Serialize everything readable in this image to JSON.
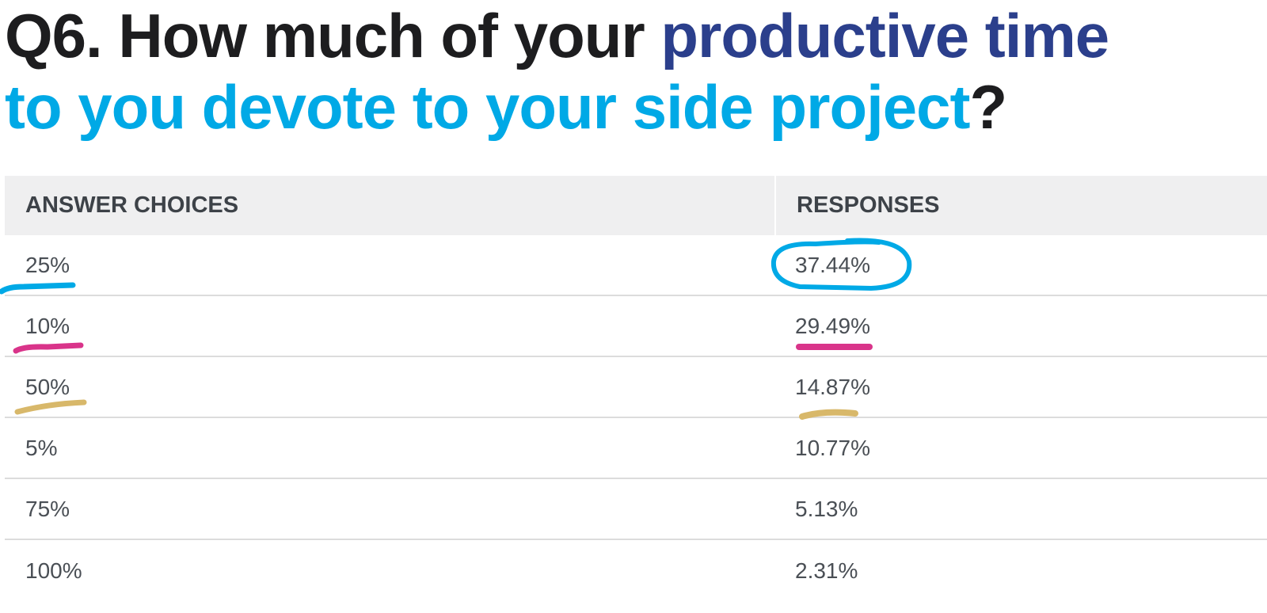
{
  "title": {
    "line1_black": "Q6. How much of your ",
    "line1_blue": "productive time",
    "line2_cyan": "to you devote to your side project",
    "line2_black": "?"
  },
  "colors": {
    "dark_blue": "#2b3f8c",
    "cyan": "#00a9e6",
    "pink": "#d9348a",
    "gold": "#d8b86a"
  },
  "chart_data": {
    "type": "table",
    "title": "Q6. How much of your productive time to you devote to your side project?",
    "columns": [
      "ANSWER CHOICES",
      "RESPONSES"
    ],
    "rows": [
      [
        "25%",
        "37.44%"
      ],
      [
        "10%",
        "29.49%"
      ],
      [
        "50%",
        "14.87%"
      ],
      [
        "5%",
        "10.77%"
      ],
      [
        "75%",
        "5.13%"
      ],
      [
        "100%",
        "2.31%"
      ]
    ],
    "values": [
      37.44,
      29.49,
      14.87,
      10.77,
      5.13,
      2.31
    ]
  }
}
